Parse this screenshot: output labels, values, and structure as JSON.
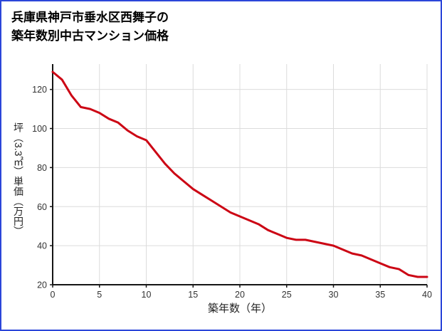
{
  "colors": {
    "border": "#2b46d9",
    "line": "#cc0514",
    "grid": "#dcdcdc",
    "axis": "#151515",
    "text": "#333333"
  },
  "chart_data": {
    "type": "line",
    "title": "兵庫県神戸市垂水区西舞子の\n築年数別中古マンション価格",
    "xlabel": "築年数（年）",
    "ylabel": "坪（3.3㎡）単価（万円）",
    "x": [
      0,
      1,
      2,
      3,
      4,
      5,
      6,
      7,
      8,
      9,
      10,
      11,
      12,
      13,
      14,
      15,
      16,
      17,
      18,
      19,
      20,
      21,
      22,
      23,
      24,
      25,
      26,
      27,
      28,
      29,
      30,
      31,
      32,
      33,
      34,
      35,
      36,
      37,
      38,
      39,
      40
    ],
    "series": [
      {
        "name": "坪単価（万円）",
        "values": [
          129,
          125,
          117,
          111,
          110,
          108,
          105,
          103,
          99,
          96,
          94,
          88,
          82,
          77,
          73,
          69,
          66,
          63,
          60,
          57,
          55,
          53,
          51,
          48,
          46,
          44,
          43,
          43,
          42,
          41,
          40,
          38,
          36,
          35,
          33,
          31,
          29,
          28,
          25,
          24,
          24
        ]
      }
    ],
    "xlim": [
      0,
      40
    ],
    "ylim": [
      20,
      133
    ],
    "xticks": [
      0,
      5,
      10,
      15,
      20,
      25,
      30,
      35,
      40
    ],
    "yticks": [
      20,
      40,
      60,
      80,
      100,
      120
    ],
    "grid": true,
    "legend": "none"
  }
}
